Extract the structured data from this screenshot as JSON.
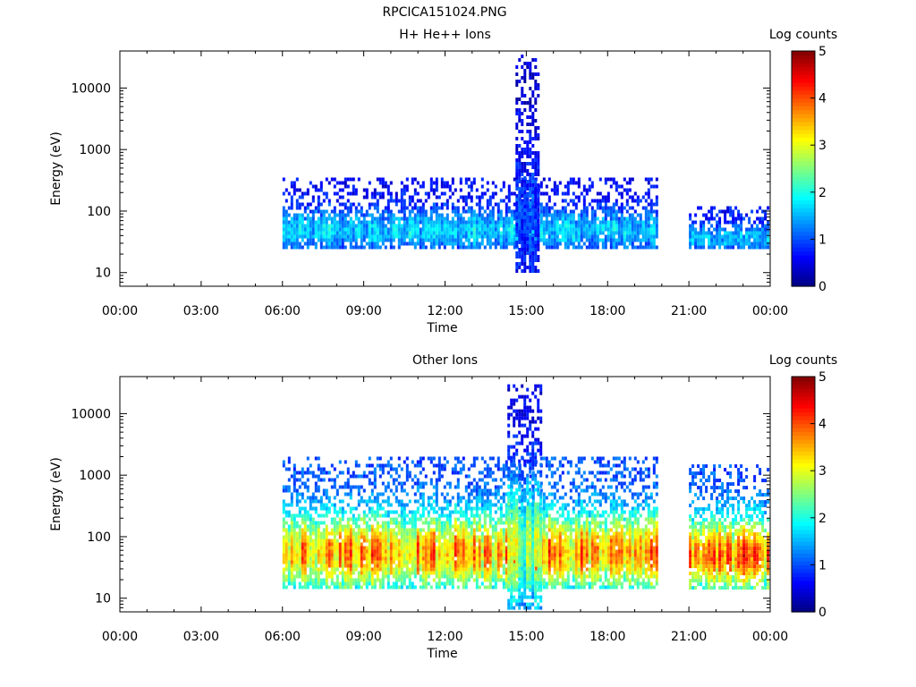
{
  "title": "RPCICA151024.PNG",
  "chart_data": [
    {
      "type": "heatmap",
      "title": "H+ He++ Ions",
      "xlabel": "Time",
      "ylabel": "Energy (eV)",
      "x_ticks": [
        "00:00",
        "03:00",
        "06:00",
        "09:00",
        "12:00",
        "15:00",
        "18:00",
        "21:00",
        "00:00"
      ],
      "xlim_hours": [
        0,
        24
      ],
      "y_scale": "log",
      "y_ticks": [
        10,
        100,
        1000,
        10000
      ],
      "ylim": [
        6,
        40000
      ],
      "grid": false,
      "colorbar": {
        "label": "Log counts",
        "range": [
          0,
          5
        ],
        "ticks": [
          "0",
          "1",
          "2",
          "3",
          "4",
          "5"
        ],
        "colormap": "jet"
      },
      "data_description_segments": [
        {
          "start_h": 6.0,
          "end_h": 19.8,
          "band_eV": [
            25,
            350
          ],
          "peak_log_counts": 1.8,
          "background_log_counts": 0.6
        },
        {
          "start_h": 14.6,
          "end_h": 15.4,
          "band_eV": [
            10,
            35000
          ],
          "peak_log_counts": 1.0,
          "background_log_counts": 0.4
        },
        {
          "start_h": 21.0,
          "end_h": 23.9,
          "band_eV": [
            25,
            120
          ],
          "peak_log_counts": 1.6,
          "background_log_counts": 0.7
        }
      ]
    },
    {
      "type": "heatmap",
      "title": "Other Ions",
      "xlabel": "Time",
      "ylabel": "Energy (eV)",
      "x_ticks": [
        "00:00",
        "03:00",
        "06:00",
        "09:00",
        "12:00",
        "15:00",
        "18:00",
        "21:00",
        "00:00"
      ],
      "xlim_hours": [
        0,
        24
      ],
      "y_scale": "log",
      "y_ticks": [
        10,
        100,
        1000,
        10000
      ],
      "ylim": [
        6,
        40000
      ],
      "grid": false,
      "colorbar": {
        "label": "Log counts",
        "range": [
          0,
          5
        ],
        "ticks": [
          "0",
          "1",
          "2",
          "3",
          "4",
          "5"
        ],
        "colormap": "jet"
      },
      "data_description_segments": [
        {
          "start_h": 6.0,
          "end_h": 19.8,
          "band_eV": [
            15,
            2000
          ],
          "peak_log_counts": 4.0,
          "background_log_counts": 1.0
        },
        {
          "start_h": 14.3,
          "end_h": 15.5,
          "band_eV": [
            7,
            30000
          ],
          "peak_log_counts": 3.0,
          "background_log_counts": 0.5
        },
        {
          "start_h": 21.0,
          "end_h": 23.9,
          "band_eV": [
            15,
            1500
          ],
          "peak_log_counts": 4.2,
          "background_log_counts": 1.0
        }
      ]
    }
  ]
}
